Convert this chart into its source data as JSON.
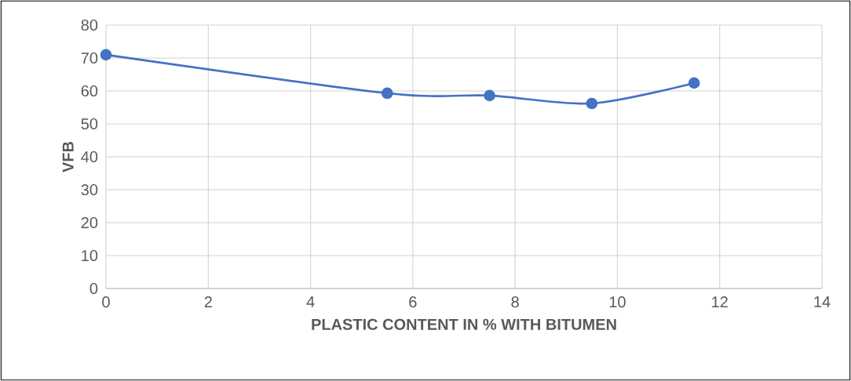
{
  "chart_data": {
    "type": "line",
    "xlabel": "PLASTIC CONTENT IN % WITH BITUMEN",
    "ylabel": "VFB",
    "x": [
      0,
      5.5,
      7.5,
      9.5,
      11.5
    ],
    "series": [
      {
        "color": "#4472c4",
        "values": [
          71,
          59.3,
          58.6,
          56.2,
          62.4
        ]
      }
    ],
    "xlim": [
      0,
      14
    ],
    "xticks": [
      0,
      2,
      4,
      6,
      8,
      10,
      12,
      14
    ],
    "ylim": [
      0,
      80
    ],
    "yticks": [
      0,
      10,
      20,
      30,
      40,
      50,
      60,
      70,
      80
    ],
    "grid": true,
    "marker": "circle",
    "line_style": "solid"
  }
}
